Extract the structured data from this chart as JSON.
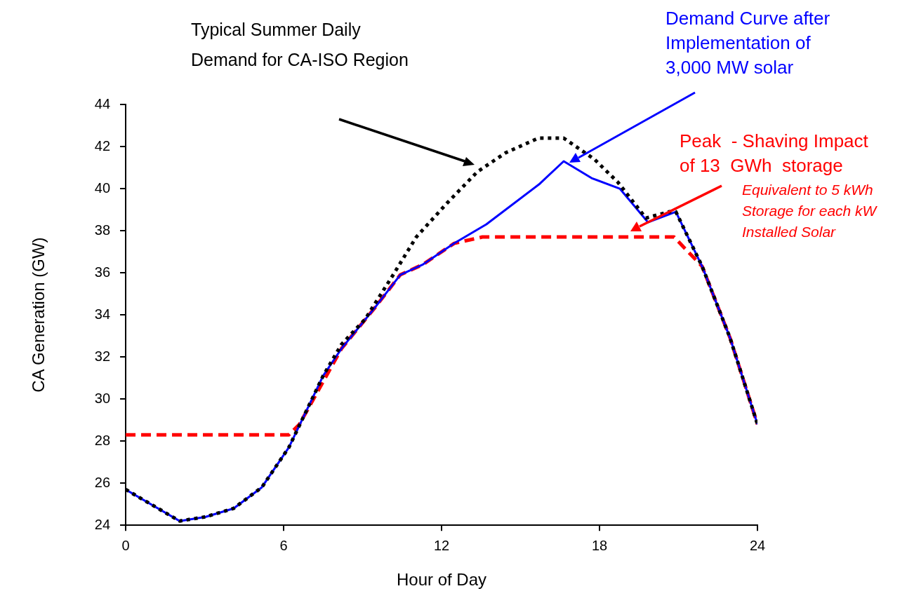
{
  "chart_data": {
    "type": "line",
    "xlabel": "Hour of Day",
    "ylabel": "CA Generation (GW)",
    "xlim": [
      0,
      24
    ],
    "xticks": [
      0,
      6,
      12,
      18,
      24
    ],
    "ylim": [
      24,
      44
    ],
    "yticks": [
      24,
      26,
      28,
      30,
      32,
      34,
      36,
      38,
      40,
      42,
      44
    ],
    "grid": false,
    "legend": false,
    "marker": "none",
    "series": [
      {
        "color": "#000000",
        "line_style": "dotted",
        "x": [
          0,
          2.05,
          3.04,
          4.1,
          5.17,
          6.2,
          7.5,
          8.2,
          9.1,
          10.16,
          11.04,
          12.2,
          13.36,
          14.43,
          15.68,
          16.64,
          17.8,
          18.7,
          19.76,
          20.64,
          20.9,
          21.9,
          22.96,
          24
        ],
        "values": [
          25.7,
          24.2,
          24.4,
          24.8,
          25.8,
          27.7,
          31.1,
          32.6,
          33.8,
          35.9,
          37.7,
          39.3,
          40.8,
          41.7,
          42.4,
          42.4,
          41.4,
          40.3,
          38.6,
          38.9,
          38.9,
          36.3,
          32.9,
          28.8
        ]
      },
      {
        "color": "#0000ff",
        "line_style": "solid",
        "x": [
          0,
          2.05,
          3.04,
          4.1,
          5.17,
          6.2,
          7.5,
          8.2,
          9.44,
          10.43,
          11.3,
          12.48,
          13.7,
          15.7,
          16.64,
          17.7,
          18.77,
          19.84,
          20.9,
          21.9,
          22.96,
          24
        ],
        "values": [
          25.7,
          24.2,
          24.4,
          24.8,
          25.8,
          27.7,
          31.1,
          32.4,
          34.3,
          35.9,
          36.4,
          37.4,
          38.3,
          40.2,
          41.3,
          40.5,
          40.0,
          38.4,
          38.9,
          36.3,
          32.9,
          28.8
        ]
      },
      {
        "color": "#ff0000",
        "line_style": "dashed",
        "x": [
          0,
          6.2,
          6.6,
          8.2,
          9.44,
          10.43,
          11.3,
          12.48,
          13.55,
          20.83,
          21.9,
          22.96,
          24
        ],
        "values": [
          28.3,
          28.3,
          28.8,
          32.4,
          34.3,
          35.9,
          36.4,
          37.4,
          37.7,
          37.7,
          36.3,
          32.9,
          28.8
        ]
      }
    ],
    "annotations": [
      "Typical Summer Daily\nDemand for CA-ISO Region",
      "Demand Curve after\nImplementation of\n3,000 MW solar",
      "Peak  - Shaving Impact\nof 13  GWh  storage",
      "Equivalent to 5 kWh\nStorage for each kW\nInstalled Solar"
    ]
  }
}
